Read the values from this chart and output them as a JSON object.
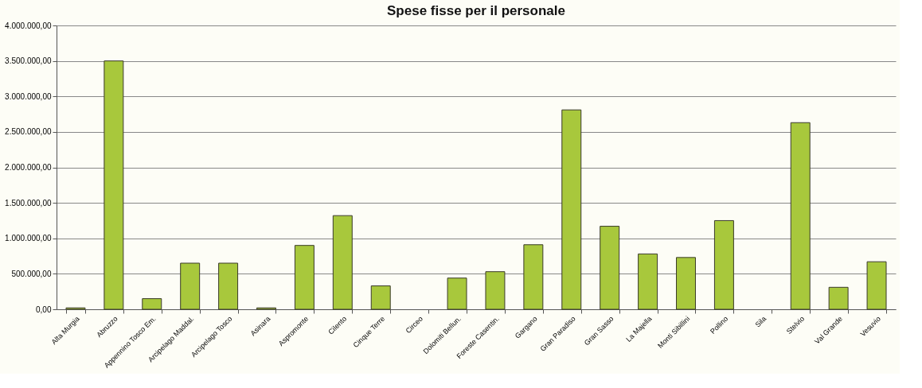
{
  "chart_data": {
    "type": "bar",
    "title": "Spese fisse per il personale",
    "categories": [
      "Alta Murgia",
      "Abruzzo",
      "Appennino Tosco Em.",
      "Arcipelago Maddal.",
      "Arcipelago Tosco",
      "Asinara",
      "Aspromonte",
      "Cilento",
      "Cinque Terre",
      "Circeo",
      "Dolomiti Bellun.",
      "Foreste Casentin.",
      "Gargano",
      "Gran Paradiso",
      "Gran Sasso",
      "La Majella",
      "Monti Sibillini",
      "Pollino",
      "Sila",
      "Stelvio",
      "Val Grande",
      "Vesuvio"
    ],
    "series": [
      {
        "color": "#a8c83c",
        "values": [
          20000,
          3500000,
          150000,
          650000,
          650000,
          20000,
          900000,
          1320000,
          330000,
          null,
          440000,
          530000,
          910000,
          2810000,
          1170000,
          780000,
          730000,
          1250000,
          null,
          2630000,
          310000,
          670000
        ]
      }
    ],
    "ylim": [
      0,
      4000000
    ],
    "yticks": [
      {
        "value": 0,
        "label": "0,00"
      },
      {
        "value": 500000,
        "label": "500.000,00"
      },
      {
        "value": 1000000,
        "label": "1.000.000,00"
      },
      {
        "value": 1500000,
        "label": "1.500.000,00"
      },
      {
        "value": 2000000,
        "label": "2.000.000,00"
      },
      {
        "value": 2500000,
        "label": "2.500.000,00"
      },
      {
        "value": 3000000,
        "label": "3.000.000,00"
      },
      {
        "value": 3500000,
        "label": "3.500.000,00"
      },
      {
        "value": 4000000,
        "label": "4.000.000,00"
      }
    ],
    "grid": "y"
  }
}
